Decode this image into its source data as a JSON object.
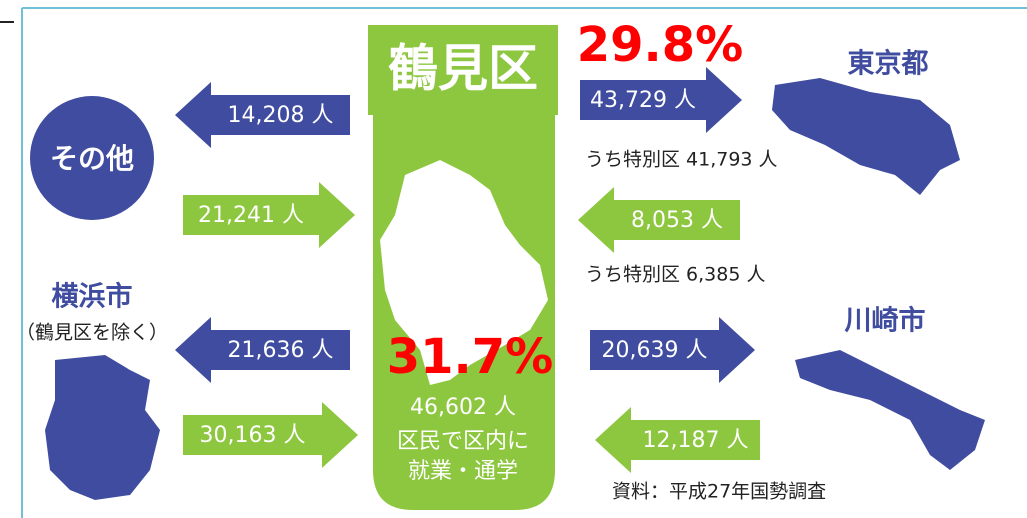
{
  "center": {
    "title": "鶴見区",
    "share": "31.7%",
    "count": "46,602 人",
    "caption": [
      "区民で区内に",
      "就業・通学"
    ]
  },
  "tokyo": {
    "label": "東京都",
    "share": "29.8%",
    "outflow": "43,729 人",
    "outflow_note": "うち特別区 41,793 人",
    "inflow": "8,053 人",
    "inflow_note": "うち特別区 6,385 人"
  },
  "kawasaki": {
    "label": "川崎市",
    "outflow": "20,639 人",
    "inflow": "12,187 人"
  },
  "yokohama": {
    "label": "横浜市",
    "note": "（鶴見区を除く）",
    "outflow": "21,636 人",
    "inflow": "30,163 人"
  },
  "other": {
    "label": "その他",
    "outflow": "14,208 人",
    "inflow": "21,241 人"
  },
  "source": "資料：平成27年国勢調査"
}
